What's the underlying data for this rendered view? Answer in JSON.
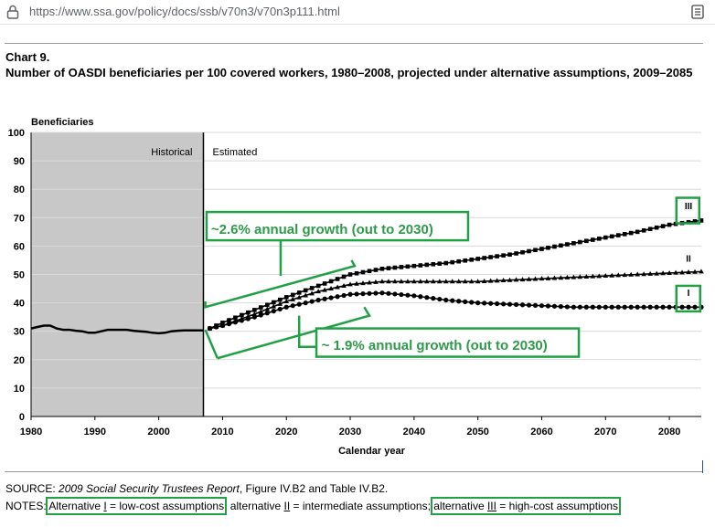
{
  "browser": {
    "url": "https://www.ssa.gov/policy/docs/ssb/v70n3/v70n3p111.html",
    "lock_icon": "lock-icon",
    "reader_icon": "reader-view-icon"
  },
  "figure": {
    "chart_label": "Chart 9.",
    "title": "Number of OASDI beneficiaries per 100 covered workers, 1980–2008, projected under alternative assumptions, 2009–2085"
  },
  "source": {
    "prefix": "SOURCE: ",
    "report": "2009 Social Security Trustees Report",
    "rest": ", Figure IV.B2 and Table IV.B2."
  },
  "notes": {
    "prefix": "NOTES: ",
    "alt1_a": "Alternative ",
    "alt1_num": "I",
    "alt1_b": " = low-cost assumptions",
    "sep1": "; ",
    "alt2_a": "alternative ",
    "alt2_num": "II",
    "alt2_b": " = intermediate assumptions",
    "sep2": "; ",
    "alt3_a": "alternative ",
    "alt3_num": "III",
    "alt3_b": " = high-cost assumptions"
  },
  "chart_data": {
    "type": "line",
    "title": "",
    "xlabel": "Calendar year",
    "ylabel": "Beneficiaries",
    "xlim": [
      1980,
      2085
    ],
    "ylim": [
      0,
      100
    ],
    "xticks": [
      1980,
      1990,
      2000,
      2010,
      2020,
      2030,
      2040,
      2050,
      2060,
      2070,
      2080
    ],
    "yticks": [
      0,
      10,
      20,
      30,
      40,
      50,
      60,
      70,
      80,
      90,
      100
    ],
    "grid": true,
    "regions": [
      {
        "label": "Historical",
        "from": 1980,
        "to": 2007,
        "color": "#c8c8c8"
      },
      {
        "label": "Estimated",
        "from": 2007,
        "to": 2085
      }
    ],
    "series": [
      {
        "name": "Historical",
        "x": [
          1980,
          1981,
          1982,
          1983,
          1984,
          1985,
          1986,
          1987,
          1988,
          1989,
          1990,
          1991,
          1992,
          1993,
          1994,
          1995,
          1996,
          1997,
          1998,
          1999,
          2000,
          2001,
          2002,
          2003,
          2004,
          2005,
          2006,
          2007
        ],
        "values": [
          31,
          31.5,
          32,
          32,
          31,
          30.5,
          30.5,
          30.2,
          30,
          29.5,
          29.5,
          30,
          30.5,
          30.5,
          30.5,
          30.5,
          30.2,
          30,
          29.8,
          29.5,
          29.3,
          29.5,
          30,
          30.2,
          30.3,
          30.3,
          30.3,
          30.3
        ]
      },
      {
        "name": "III",
        "x": [
          2008,
          2010,
          2015,
          2020,
          2025,
          2030,
          2035,
          2040,
          2045,
          2050,
          2055,
          2060,
          2065,
          2070,
          2075,
          2080,
          2085
        ],
        "values": [
          31,
          33,
          37.5,
          42,
          46,
          50,
          52,
          53,
          54,
          55.5,
          57,
          59,
          61,
          63,
          65,
          67.5,
          69
        ]
      },
      {
        "name": "II",
        "x": [
          2008,
          2010,
          2015,
          2020,
          2025,
          2030,
          2035,
          2040,
          2045,
          2050,
          2055,
          2060,
          2065,
          2070,
          2075,
          2080,
          2085
        ],
        "values": [
          31,
          32,
          36,
          40.5,
          44,
          46.5,
          47.5,
          47.5,
          47.5,
          47.5,
          48,
          48.5,
          49,
          49.5,
          50,
          50.5,
          51
        ]
      },
      {
        "name": "I",
        "x": [
          2008,
          2010,
          2015,
          2020,
          2025,
          2030,
          2035,
          2040,
          2045,
          2050,
          2055,
          2060,
          2065,
          2070,
          2075,
          2080,
          2085
        ],
        "values": [
          31,
          32,
          35,
          38.5,
          41,
          43,
          43.5,
          42.5,
          41,
          40,
          39.5,
          39,
          38.5,
          38.5,
          38.5,
          38.5,
          38.5
        ]
      }
    ],
    "series_labels": [
      "III",
      "II",
      "I"
    ],
    "annotations": [
      {
        "text": "~2.6% annual growth (out to 2030)"
      },
      {
        "text": "~ 1.9% annual growth (out to 2030)"
      }
    ],
    "colors": {
      "line": "#000000",
      "annotation": "#22a046",
      "annotation_text": "#2e9a4a",
      "grid": "#d9d9d9"
    }
  }
}
